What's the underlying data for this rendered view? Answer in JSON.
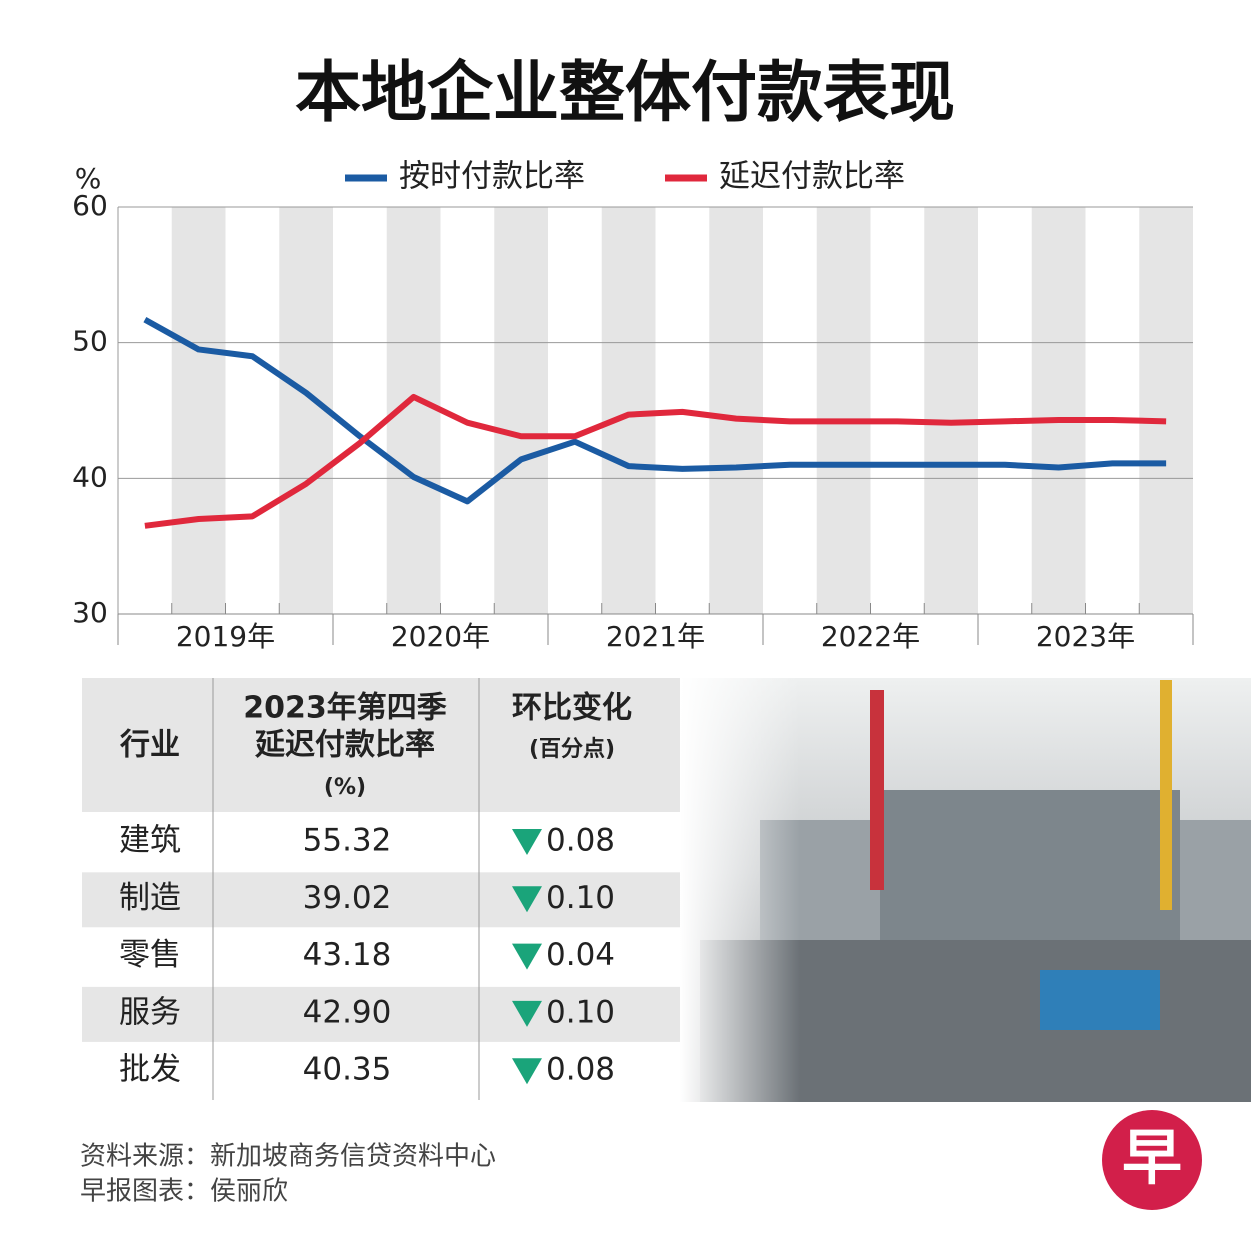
{
  "chart_data": {
    "type": "line",
    "title": "本地企业整体付款表现",
    "y_label": "%",
    "categories": [
      null,
      null,
      null,
      null,
      null,
      null,
      null,
      null,
      null,
      null,
      null,
      null,
      null,
      null,
      null,
      null,
      null,
      null,
      null,
      null
    ],
    "x_groups": [
      "2019年",
      "2020年",
      "2021年",
      "2022年",
      "2023年"
    ],
    "ylim": [
      30,
      60
    ],
    "yticks": [
      30,
      40,
      50,
      60
    ],
    "grid": true,
    "series": [
      {
        "name": "按时付款比率",
        "color": "#1b5ba3",
        "values": [
          51.7,
          49.5,
          49.0,
          46.3,
          43.1,
          40.1,
          38.3,
          41.4,
          42.7,
          40.9,
          40.7,
          40.8,
          41.0,
          41.0,
          41.0,
          41.0,
          41.0,
          40.8,
          41.1,
          41.1
        ]
      },
      {
        "name": "延迟付款比率",
        "color": "#e0283c",
        "values": [
          36.5,
          37.0,
          37.2,
          39.6,
          42.6,
          46.0,
          44.1,
          43.1,
          43.1,
          44.7,
          44.9,
          44.4,
          44.2,
          44.2,
          44.2,
          44.1,
          44.2,
          44.3,
          44.3,
          44.2
        ]
      }
    ]
  },
  "table": {
    "header": [
      "行业",
      "2023年第四季",
      "延迟付款比率",
      "(%)",
      "环比变化",
      "(百分点)"
    ],
    "rows": [
      [
        "建筑",
        "55.32",
        "0.08"
      ],
      [
        "制造",
        "39.02",
        "0.10"
      ],
      [
        "零售",
        "43.18",
        "0.04"
      ],
      [
        "服务",
        "42.90",
        "0.10"
      ],
      [
        "批发",
        "40.35",
        "0.08"
      ]
    ]
  },
  "footer": [
    "资料来源：新加坡商务信贷资料中心",
    "早报图表：侯丽欣"
  ],
  "logo": "早"
}
